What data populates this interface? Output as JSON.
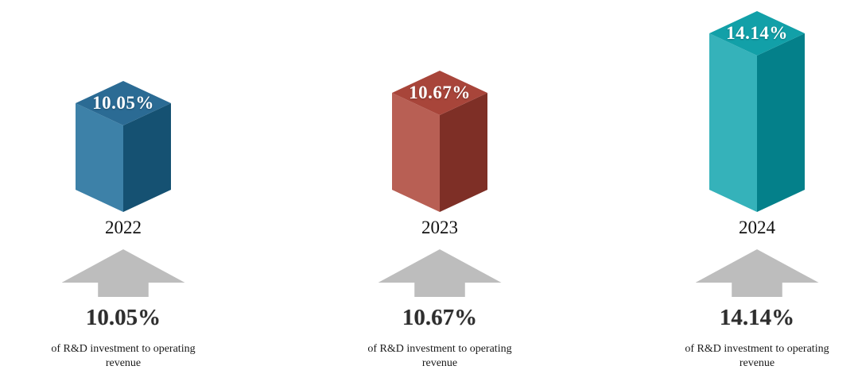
{
  "chart_data": {
    "type": "bar",
    "style": "3d-cuboid-bars",
    "categories": [
      "2022",
      "2023",
      "2024"
    ],
    "values": [
      10.05,
      10.67,
      14.14
    ],
    "value_labels": [
      "10.05%",
      "10.67%",
      "14.14%"
    ],
    "unit": "%",
    "title": "",
    "xlabel": "",
    "ylabel": "",
    "legend": "none",
    "grid": false,
    "annotation_per_bar": "of R&D investment to operating revenue"
  },
  "columns": [
    {
      "year": "2022",
      "bar_value_label": "10.05%",
      "arrow_value_label": "10.05%",
      "caption": "of R&D investment to operating revenue",
      "colors": {
        "top": "#2b6b94",
        "left": "#3d81a8",
        "right": "#155172"
      }
    },
    {
      "year": "2023",
      "bar_value_label": "10.67%",
      "arrow_value_label": "10.67%",
      "caption": "of R&D investment to operating revenue",
      "colors": {
        "top": "#a8453a",
        "left": "#b85f54",
        "right": "#7e2f26"
      }
    },
    {
      "year": "2024",
      "bar_value_label": "14.14%",
      "arrow_value_label": "14.14%",
      "caption": "of R&D investment to operating revenue",
      "colors": {
        "top": "#12a0a8",
        "left": "#35b2ba",
        "right": "#04808a"
      }
    }
  ],
  "icons": {
    "arrow": "up-arrow"
  },
  "colors": {
    "background": "#ffffff",
    "arrow": "#bdbdbd",
    "year_text": "#111111",
    "pct_text": "#2e2e2e",
    "caption_text": "#1a1a1a",
    "bar_label_text": "#ffffff"
  }
}
